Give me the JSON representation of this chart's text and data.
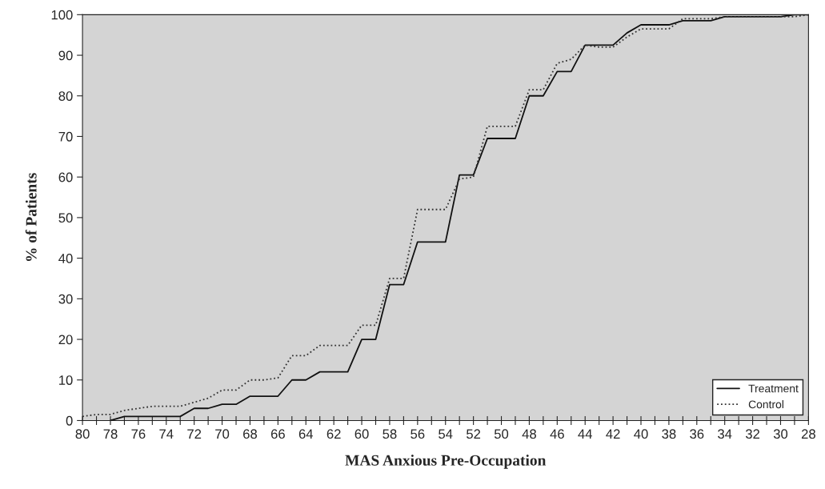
{
  "chart_data": {
    "type": "line",
    "xlabel": "MAS Anxious Pre-Occupation",
    "ylabel": "% of Patients",
    "xlim": [
      80,
      28
    ],
    "ylim": [
      0,
      100
    ],
    "xticks": [
      80,
      {
        "value": 79,
        "label": null
      },
      78,
      {
        "value": 77,
        "label": null
      },
      76,
      {
        "value": 75,
        "label": null
      },
      74,
      {
        "value": 73,
        "label": null
      },
      72,
      {
        "value": 71,
        "label": null
      },
      70,
      {
        "value": 69,
        "label": null
      },
      68,
      {
        "value": 67,
        "label": null
      },
      66,
      {
        "value": 65,
        "label": null
      },
      64,
      {
        "value": 63,
        "label": null
      },
      62,
      {
        "value": 61,
        "label": null
      },
      60,
      {
        "value": 59,
        "label": null
      },
      58,
      {
        "value": 57,
        "label": null
      },
      56,
      {
        "value": 55,
        "label": null
      },
      54,
      {
        "value": 53,
        "label": null
      },
      52,
      {
        "value": 51,
        "label": null
      },
      50,
      {
        "value": 49,
        "label": null
      },
      48,
      {
        "value": 47,
        "label": null
      },
      46,
      {
        "value": 45,
        "label": null
      },
      44,
      {
        "value": 43,
        "label": null
      },
      42,
      {
        "value": 41,
        "label": null
      },
      40,
      {
        "value": 39,
        "label": null
      },
      38,
      {
        "value": 37,
        "label": null
      },
      36,
      {
        "value": 35,
        "label": null
      },
      34,
      {
        "value": 33,
        "label": null
      },
      32,
      {
        "value": 31,
        "label": null
      },
      30,
      {
        "value": 29,
        "label": null
      },
      28
    ],
    "yticks": [
      0,
      10,
      20,
      30,
      40,
      50,
      60,
      70,
      80,
      90,
      100
    ],
    "grid": false,
    "legend": "bottom right",
    "marker": "none",
    "series": [
      {
        "name": "Treatment",
        "color": "#111111",
        "line_style": "solid",
        "x": [
          78,
          77,
          76,
          75,
          74,
          73,
          72,
          71,
          70,
          69,
          68,
          67,
          66,
          65,
          64,
          63,
          62,
          61,
          60,
          59,
          58,
          57,
          56,
          55,
          54,
          53,
          52,
          51,
          50,
          49,
          48,
          47,
          46,
          45,
          44,
          43,
          42,
          41,
          40,
          39,
          38,
          37,
          36,
          35,
          34,
          33,
          32,
          31,
          30,
          29,
          28
        ],
        "values": [
          0,
          1,
          1,
          1,
          1,
          1,
          3,
          3,
          4,
          4,
          6,
          6,
          6,
          10,
          10,
          12,
          12,
          12,
          20,
          20,
          33.5,
          33.5,
          44,
          44,
          44,
          60.5,
          60.5,
          69.5,
          69.5,
          69.5,
          80,
          80,
          86,
          86,
          92.5,
          92.5,
          92.5,
          95.5,
          97.5,
          97.5,
          97.5,
          98.5,
          98.5,
          98.5,
          99.5,
          99.5,
          99.5,
          99.5,
          99.5,
          100,
          100
        ]
      },
      {
        "name": "Control",
        "color": "#333333",
        "line_style": "dotted",
        "x": [
          80,
          79,
          78,
          77,
          76,
          75,
          74,
          73,
          72,
          71,
          70,
          69,
          68,
          67,
          66,
          65,
          64,
          63,
          62,
          61,
          60,
          59,
          58,
          57,
          56,
          55,
          54,
          53,
          52,
          51,
          50,
          49,
          48,
          47,
          46,
          45,
          44,
          43,
          42,
          41,
          40,
          39,
          38,
          37,
          36,
          35,
          34,
          33,
          32,
          31,
          30,
          29,
          28
        ],
        "values": [
          1,
          1.5,
          1.5,
          2.5,
          3,
          3.5,
          3.5,
          3.5,
          4.5,
          5.5,
          7.5,
          7.5,
          10,
          10,
          10.5,
          16,
          16,
          18.5,
          18.5,
          18.5,
          23.5,
          23.5,
          35,
          35,
          52,
          52,
          52,
          59.5,
          60,
          72.5,
          72.5,
          72.5,
          81.5,
          81.5,
          88,
          89,
          92.5,
          92,
          92,
          94.5,
          96.5,
          96.5,
          96.5,
          99,
          99,
          99,
          99.5,
          99.5,
          99.5,
          99.5,
          99.5,
          99.5,
          100
        ]
      }
    ]
  }
}
